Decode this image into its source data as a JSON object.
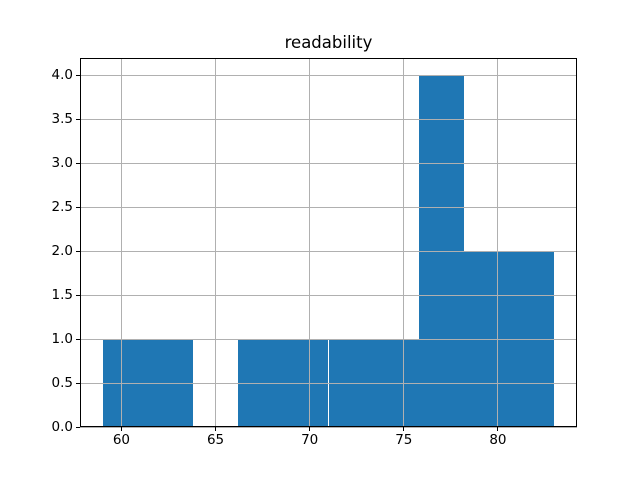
{
  "figure": {
    "background_color": "#ffffff"
  },
  "chart_data": {
    "type": "bar",
    "subtype": "histogram",
    "title": "readability",
    "xlabel": "",
    "ylabel": "",
    "bin_edges": [
      59,
      61.4,
      63.8,
      66.2,
      68.6,
      71,
      73.4,
      75.8,
      78.2,
      80.6,
      83
    ],
    "counts": [
      1,
      1,
      0,
      1,
      1,
      1,
      1,
      4,
      2,
      2
    ],
    "xlim": [
      57.8,
      84.2
    ],
    "ylim": [
      0,
      4.2
    ],
    "xticks": {
      "values": [
        60,
        65,
        70,
        75,
        80
      ],
      "labels": [
        "60",
        "65",
        "70",
        "75",
        "80"
      ]
    },
    "yticks": {
      "values": [
        0,
        0.5,
        1,
        1.5,
        2,
        2.5,
        3,
        3.5,
        4
      ],
      "labels": [
        "0.0",
        "0.5",
        "1.0",
        "1.5",
        "2.0",
        "2.5",
        "3.0",
        "3.5",
        "4.0"
      ]
    },
    "grid": true,
    "grid_over_bars": true,
    "legend": false,
    "bar_color": "#1f77b4",
    "grid_color": "#b0b0b0",
    "spine_color": "#000000",
    "text_color": "#000000"
  }
}
